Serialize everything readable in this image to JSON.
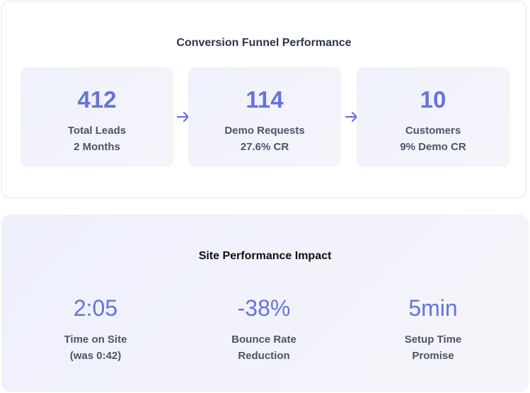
{
  "funnel": {
    "title": "Conversion Funnel Performance",
    "stages": [
      {
        "value": "412",
        "label": "Total Leads",
        "sub": "2 Months"
      },
      {
        "value": "114",
        "label": "Demo Requests",
        "sub": "27.6% CR"
      },
      {
        "value": "10",
        "label": "Customers",
        "sub": "9% Demo CR"
      }
    ],
    "arrow_icon": "arrow-right-icon"
  },
  "impact": {
    "title": "Site Performance Impact",
    "metrics": [
      {
        "value": "2:05",
        "label_line1": "Time on Site",
        "label_line2": "(was 0:42)"
      },
      {
        "value": "-38%",
        "label_line1": "Bounce Rate",
        "label_line2": "Reduction"
      },
      {
        "value": "5min",
        "label_line1": "Setup Time",
        "label_line2": "Promise"
      }
    ]
  },
  "colors": {
    "accent": "#6674d9",
    "text": "#4a5568",
    "title": "#2d3748"
  }
}
